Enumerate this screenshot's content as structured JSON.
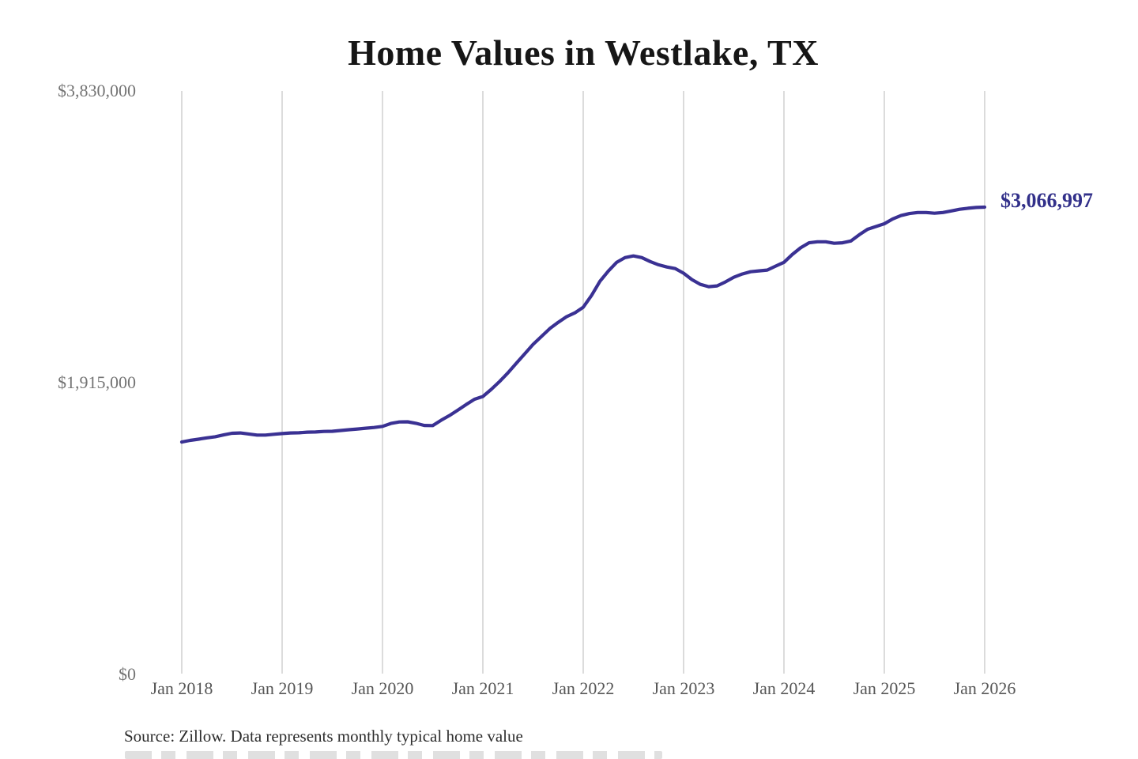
{
  "page": {
    "background": "#ffffff"
  },
  "chart_data": {
    "type": "line",
    "title": "Home Values in Westlake, TX",
    "xlabel": "",
    "ylabel": "",
    "x_unit": "month",
    "x_range": "Jan 2018 to Jan 2026, monthly",
    "x_tick_labels": [
      "Jan 2018",
      "Jan 2019",
      "Jan 2020",
      "Jan 2021",
      "Jan 2022",
      "Jan 2023",
      "Jan 2024",
      "Jan 2025",
      "Jan 2026"
    ],
    "y_tick_labels": [
      "$0",
      "$1,915,000",
      "$3,830,000"
    ],
    "y_tick_values": [
      0,
      1915000,
      3830000
    ],
    "ylim": [
      0,
      3830000
    ],
    "grid": "vertical-only",
    "legend": "none",
    "line_color": "#3a3193",
    "grid_color": "#cccccc",
    "end_label_color": "#32308a",
    "end_label": "$3,066,997",
    "latest_value": 3066997,
    "series": [
      {
        "name": "Monthly typical home value",
        "values": [
          1525000,
          1536000,
          1544000,
          1553000,
          1560000,
          1572000,
          1583000,
          1585000,
          1578000,
          1571000,
          1571000,
          1576000,
          1581000,
          1585000,
          1586000,
          1590000,
          1591000,
          1595000,
          1596000,
          1601000,
          1606000,
          1611000,
          1616000,
          1621000,
          1628000,
          1647000,
          1657000,
          1658000,
          1648000,
          1634000,
          1633000,
          1668000,
          1699000,
          1735000,
          1771000,
          1806000,
          1824000,
          1871000,
          1923000,
          1980000,
          2042000,
          2104000,
          2166000,
          2218000,
          2270000,
          2311000,
          2348000,
          2373000,
          2410000,
          2488000,
          2581000,
          2648000,
          2705000,
          2736000,
          2747000,
          2736000,
          2710000,
          2689000,
          2674000,
          2664000,
          2633000,
          2591000,
          2560000,
          2545000,
          2550000,
          2576000,
          2607000,
          2628000,
          2643000,
          2649000,
          2654000,
          2680000,
          2705000,
          2757000,
          2801000,
          2833000,
          2840000,
          2840000,
          2830000,
          2833000,
          2845000,
          2886000,
          2922000,
          2940000,
          2958000,
          2990000,
          3012000,
          3025000,
          3032000,
          3032000,
          3027000,
          3032000,
          3042000,
          3053000,
          3060000,
          3065000,
          3066997
        ]
      }
    ]
  },
  "footer": {
    "source": "Source: Zillow. Data represents monthly typical home value"
  }
}
